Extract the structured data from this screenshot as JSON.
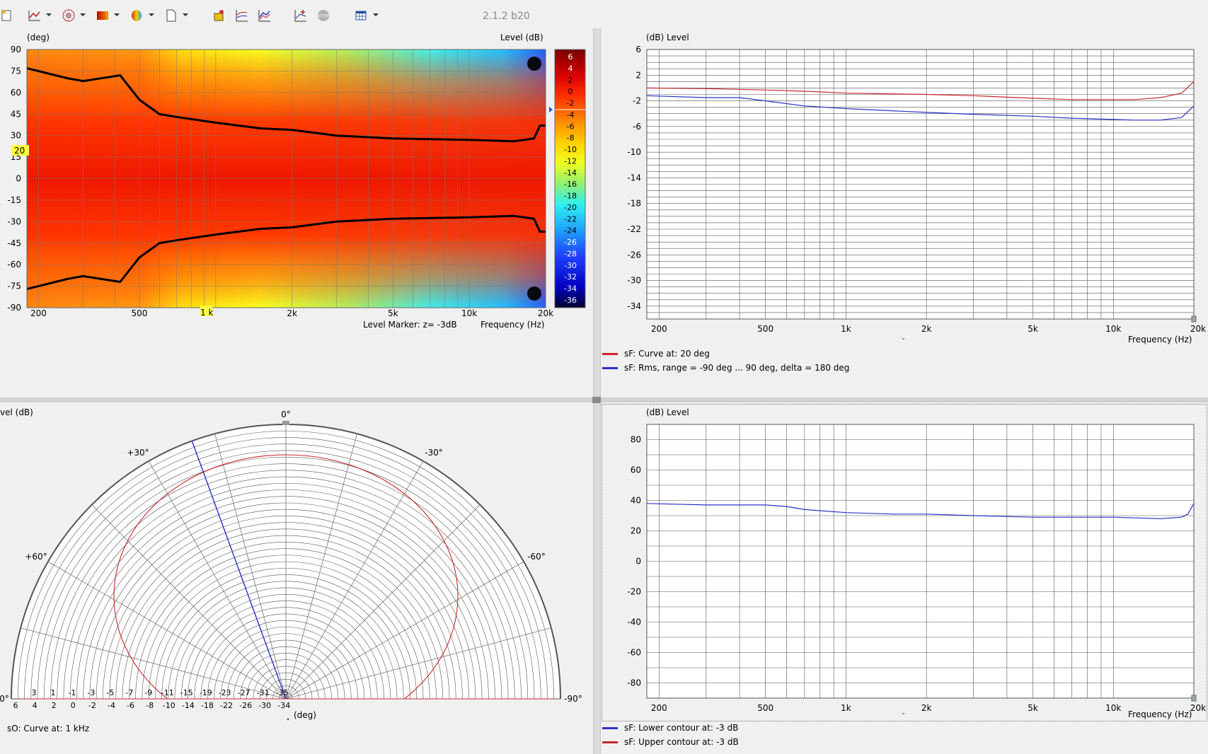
{
  "app": {
    "version": "2.1.2 b20",
    "toolbar_icons": [
      "document-icon",
      "line-chart-icon",
      "polar-icon",
      "sonogram-icon",
      "balloon-icon",
      "page-icon",
      "cue-icon",
      "chart-sweep-icon",
      "chart-compare-icon",
      "chart-add-icon",
      "stop-icon",
      "grid-window-icon"
    ]
  },
  "sonogram": {
    "y_unit": "(deg)",
    "level_unit": "Level  (dB)",
    "y_ticks": [
      "90",
      "75",
      "60",
      "45",
      "30",
      "15",
      "0",
      "-15",
      "-30",
      "-45",
      "-60",
      "-75",
      "-90"
    ],
    "x_ticks": [
      "200",
      "500",
      "1 k",
      "2k",
      "5k",
      "10k",
      "20k"
    ],
    "colorbar_ticks": [
      "6",
      "4",
      "2",
      "0",
      "-2",
      "-4",
      "-6",
      "-8",
      "-10",
      "-12",
      "-14",
      "-16",
      "-18",
      "-20",
      "-22",
      "-24",
      "-26",
      "-28",
      "-30",
      "-32",
      "-34",
      "-36"
    ],
    "marker_label": "20",
    "freq_marker_label": "1 k",
    "level_marker": "Level Marker:  z= -3dB",
    "x_label": "Frequency  (Hz)"
  },
  "response_top": {
    "y_label": "(dB)  Level",
    "y_ticks": [
      "6",
      "2",
      "-2",
      "-6",
      "-10",
      "-14",
      "-18",
      "-22",
      "-26",
      "-30",
      "-34"
    ],
    "x_ticks": [
      "200",
      "500",
      "1k",
      "2k",
      "5k",
      "10k",
      "20k"
    ],
    "x_label": "Frequency  (Hz)",
    "legend": [
      {
        "label": "sF: Curve at: 20 deg",
        "color": "#c8282a"
      },
      {
        "label": "sF: Rms, range = -90 deg ... 90 deg, delta = 180 deg",
        "color": "#2a32c8"
      }
    ]
  },
  "polar": {
    "y_label": "vel  (dB)",
    "angle_labels": {
      "top": "0°",
      "p30": "+30°",
      "m30": "-30°",
      "p60": "+60°",
      "m60": "-60°",
      "p90": "0°",
      "m90": "-90°"
    },
    "ring_labels_upper": [
      "3",
      "1",
      "-1",
      "-3",
      "-5",
      "-7",
      "-9",
      "-11",
      "-15",
      "-19",
      "-23",
      "-27",
      "-31",
      "-35"
    ],
    "ring_labels_lower": [
      "6",
      "4",
      "2",
      "0",
      "-2",
      "-4",
      "-6",
      "-8",
      "-10",
      "-14",
      "-18",
      "-22",
      "-26",
      "-30",
      "-34"
    ],
    "axis_unit": "(deg)",
    "caption": "sO: Curve at: 1 kHz"
  },
  "response_bottom": {
    "y_label": "(dB)  Level",
    "y_ticks": [
      "80",
      "60",
      "40",
      "20",
      "0",
      "-20",
      "-40",
      "-60",
      "-80"
    ],
    "x_ticks": [
      "200",
      "500",
      "1k",
      "2k",
      "5k",
      "10k",
      "20k"
    ],
    "x_label": "Frequency  (Hz)",
    "legend": [
      {
        "label": "sF: Lower contour at: -3 dB",
        "color": "#2a32c8"
      },
      {
        "label": "sF: Upper contour at: -3 dB",
        "color": "#c8282a"
      }
    ]
  },
  "chart_data": [
    {
      "type": "heatmap",
      "title": "",
      "xlabel": "Frequency  (Hz)",
      "ylabel": "(deg)",
      "x_scale": "log",
      "xlim": [
        180,
        20000
      ],
      "ylim": [
        -90,
        90
      ],
      "zlabel": "Level  (dB)",
      "zlim": [
        -36,
        6
      ],
      "contours": [
        {
          "name": "-3 dB upper",
          "x": [
            180,
            260,
            300,
            420,
            500,
            600,
            700,
            1000,
            1500,
            2000,
            3000,
            5000,
            10000,
            15000,
            18000,
            19000,
            20000
          ],
          "y": [
            77,
            70,
            68,
            72,
            55,
            45,
            43,
            39,
            35,
            34,
            30,
            28,
            27,
            26,
            28,
            37,
            37
          ]
        },
        {
          "name": "-3 dB lower",
          "x": [
            180,
            260,
            300,
            420,
            500,
            600,
            700,
            1000,
            1500,
            2000,
            3000,
            5000,
            10000,
            15000,
            18000,
            19000,
            20000
          ],
          "y": [
            -77,
            -70,
            -68,
            -72,
            -55,
            -45,
            -43,
            -39,
            -35,
            -34,
            -30,
            -28,
            -27,
            -26,
            -28,
            -37,
            -37
          ]
        }
      ]
    },
    {
      "type": "line",
      "title": "",
      "xlabel": "Frequency  (Hz)",
      "ylabel": "(dB)  Level",
      "x_scale": "log",
      "xlim": [
        180,
        20000
      ],
      "ylim": [
        -36,
        6
      ],
      "series": [
        {
          "name": "sF: Curve at: 20 deg",
          "color": "#c8282a",
          "x": [
            180,
            300,
            500,
            700,
            1000,
            2000,
            3000,
            5000,
            7000,
            10000,
            12000,
            15000,
            18000,
            20000
          ],
          "y": [
            0.0,
            -0.1,
            -0.3,
            -0.5,
            -0.8,
            -1.0,
            -1.2,
            -1.6,
            -1.8,
            -1.8,
            -1.8,
            -1.5,
            -0.8,
            1.0
          ]
        },
        {
          "name": "sF: Rms, range = -90 deg ... 90 deg, delta = 180 deg",
          "color": "#2a32c8",
          "x": [
            180,
            300,
            400,
            500,
            700,
            1000,
            2000,
            3000,
            5000,
            7000,
            10000,
            12000,
            15000,
            18000,
            20000
          ],
          "y": [
            -1.2,
            -1.5,
            -1.5,
            -2.0,
            -2.8,
            -3.2,
            -3.8,
            -4.1,
            -4.4,
            -4.7,
            -4.9,
            -5.0,
            -5.0,
            -4.6,
            -2.8
          ]
        }
      ]
    },
    {
      "type": "polar",
      "title": "",
      "angle_range": [
        -90,
        90
      ],
      "r_range_db": [
        -35,
        6
      ],
      "series": [
        {
          "name": "sO: Curve at: 1 kHz",
          "color": "#c8282a",
          "shape": "circle",
          "center_r_frac": 0.5,
          "radius_frac": 0.77
        },
        {
          "name": "marker",
          "color": "#2a32c8",
          "angle_deg": 20
        }
      ]
    },
    {
      "type": "line",
      "title": "",
      "xlabel": "Frequency  (Hz)",
      "ylabel": "(dB)  Level",
      "x_scale": "log",
      "xlim": [
        180,
        20000
      ],
      "ylim": [
        -90,
        90
      ],
      "series": [
        {
          "name": "sF: Lower contour at: -3 dB",
          "color": "#2a32c8",
          "x": [
            180,
            300,
            400,
            500,
            600,
            700,
            1000,
            1500,
            2000,
            3000,
            5000,
            7000,
            10000,
            15000,
            18000,
            19000,
            20000
          ],
          "y": [
            38,
            37,
            37,
            37,
            36,
            34,
            32,
            31,
            31,
            30,
            29,
            29,
            29,
            28,
            29,
            31,
            38
          ]
        }
      ]
    }
  ]
}
